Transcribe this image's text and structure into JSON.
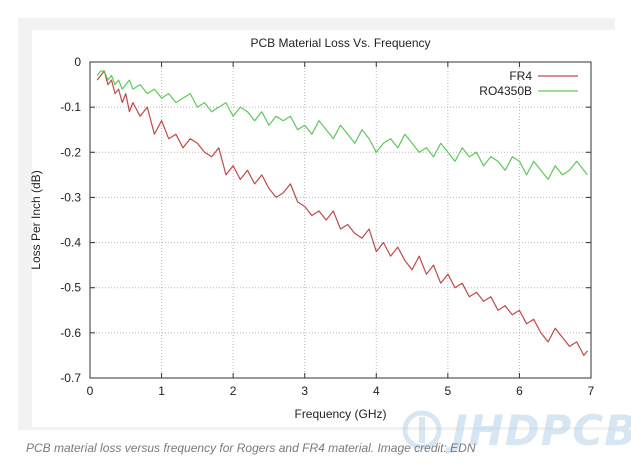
{
  "caption": "PCB material loss versus frequency for Rogers and FR4 material. Image credit: EDN",
  "watermark": "JHDPCB",
  "colors": {
    "FR4": "#c1494a",
    "RO4350B": "#5ec95b",
    "grid": "#b8b8b8",
    "axis": "#333333",
    "frame": "#f2f2f2"
  },
  "chart_data": {
    "type": "line",
    "title": "PCB Material Loss Vs. Frequency",
    "xlabel": "Frequency (GHz)",
    "ylabel": "Loss Per Inch (dB)",
    "xlim": [
      0,
      7
    ],
    "ylim": [
      -0.7,
      0
    ],
    "xticks": [
      0,
      1,
      2,
      3,
      4,
      5,
      6,
      7
    ],
    "yticks": [
      0,
      -0.1,
      -0.2,
      -0.3,
      -0.4,
      -0.5,
      -0.6,
      -0.7
    ],
    "ytick_labels": [
      "0",
      "-0.1",
      "-0.2",
      "-0.3",
      "-0.4",
      "-0.5",
      "-0.6",
      "-0.7"
    ],
    "grid": true,
    "legend": "top-right",
    "series": [
      {
        "name": "FR4",
        "color": "#c1494a",
        "x": [
          0.1,
          0.15,
          0.2,
          0.25,
          0.3,
          0.35,
          0.4,
          0.45,
          0.5,
          0.55,
          0.6,
          0.7,
          0.8,
          0.9,
          1.0,
          1.1,
          1.2,
          1.3,
          1.4,
          1.5,
          1.6,
          1.7,
          1.8,
          1.9,
          2.0,
          2.1,
          2.2,
          2.3,
          2.4,
          2.5,
          2.6,
          2.7,
          2.8,
          2.9,
          3.0,
          3.1,
          3.2,
          3.3,
          3.4,
          3.5,
          3.6,
          3.7,
          3.8,
          3.9,
          4.0,
          4.1,
          4.2,
          4.3,
          4.4,
          4.5,
          4.6,
          4.7,
          4.8,
          4.9,
          5.0,
          5.1,
          5.2,
          5.3,
          5.4,
          5.5,
          5.6,
          5.7,
          5.8,
          5.9,
          6.0,
          6.1,
          6.2,
          6.3,
          6.4,
          6.5,
          6.6,
          6.7,
          6.8,
          6.9,
          6.95
        ],
        "values": [
          -0.04,
          -0.03,
          -0.02,
          -0.05,
          -0.04,
          -0.07,
          -0.06,
          -0.09,
          -0.07,
          -0.11,
          -0.09,
          -0.12,
          -0.1,
          -0.16,
          -0.13,
          -0.17,
          -0.16,
          -0.19,
          -0.17,
          -0.18,
          -0.2,
          -0.21,
          -0.19,
          -0.25,
          -0.23,
          -0.26,
          -0.24,
          -0.27,
          -0.25,
          -0.28,
          -0.3,
          -0.29,
          -0.27,
          -0.31,
          -0.32,
          -0.34,
          -0.33,
          -0.35,
          -0.33,
          -0.37,
          -0.36,
          -0.38,
          -0.39,
          -0.37,
          -0.42,
          -0.4,
          -0.43,
          -0.41,
          -0.44,
          -0.46,
          -0.43,
          -0.47,
          -0.45,
          -0.49,
          -0.47,
          -0.5,
          -0.49,
          -0.52,
          -0.51,
          -0.53,
          -0.52,
          -0.55,
          -0.54,
          -0.56,
          -0.55,
          -0.58,
          -0.57,
          -0.6,
          -0.62,
          -0.59,
          -0.61,
          -0.63,
          -0.62,
          -0.65,
          -0.64
        ]
      },
      {
        "name": "RO4350B",
        "color": "#5ec95b",
        "x": [
          0.1,
          0.15,
          0.2,
          0.25,
          0.3,
          0.35,
          0.4,
          0.45,
          0.5,
          0.55,
          0.6,
          0.7,
          0.8,
          0.9,
          1.0,
          1.1,
          1.2,
          1.3,
          1.4,
          1.5,
          1.6,
          1.7,
          1.8,
          1.9,
          2.0,
          2.1,
          2.2,
          2.3,
          2.4,
          2.5,
          2.6,
          2.7,
          2.8,
          2.9,
          3.0,
          3.1,
          3.2,
          3.3,
          3.4,
          3.5,
          3.6,
          3.7,
          3.8,
          3.9,
          4.0,
          4.1,
          4.2,
          4.3,
          4.4,
          4.5,
          4.6,
          4.7,
          4.8,
          4.9,
          5.0,
          5.1,
          5.2,
          5.3,
          5.4,
          5.5,
          5.6,
          5.7,
          5.8,
          5.9,
          6.0,
          6.1,
          6.2,
          6.3,
          6.4,
          6.5,
          6.6,
          6.7,
          6.8,
          6.9,
          6.95
        ],
        "values": [
          -0.03,
          -0.02,
          -0.02,
          -0.04,
          -0.03,
          -0.05,
          -0.04,
          -0.06,
          -0.05,
          -0.04,
          -0.06,
          -0.05,
          -0.07,
          -0.06,
          -0.08,
          -0.07,
          -0.09,
          -0.08,
          -0.07,
          -0.1,
          -0.09,
          -0.11,
          -0.1,
          -0.09,
          -0.12,
          -0.1,
          -0.11,
          -0.13,
          -0.11,
          -0.14,
          -0.12,
          -0.13,
          -0.12,
          -0.15,
          -0.14,
          -0.16,
          -0.13,
          -0.15,
          -0.17,
          -0.14,
          -0.16,
          -0.18,
          -0.15,
          -0.17,
          -0.2,
          -0.18,
          -0.17,
          -0.19,
          -0.16,
          -0.18,
          -0.2,
          -0.19,
          -0.21,
          -0.18,
          -0.2,
          -0.22,
          -0.19,
          -0.21,
          -0.2,
          -0.23,
          -0.21,
          -0.22,
          -0.24,
          -0.21,
          -0.22,
          -0.25,
          -0.22,
          -0.24,
          -0.26,
          -0.23,
          -0.25,
          -0.24,
          -0.22,
          -0.24,
          -0.25
        ]
      }
    ]
  }
}
